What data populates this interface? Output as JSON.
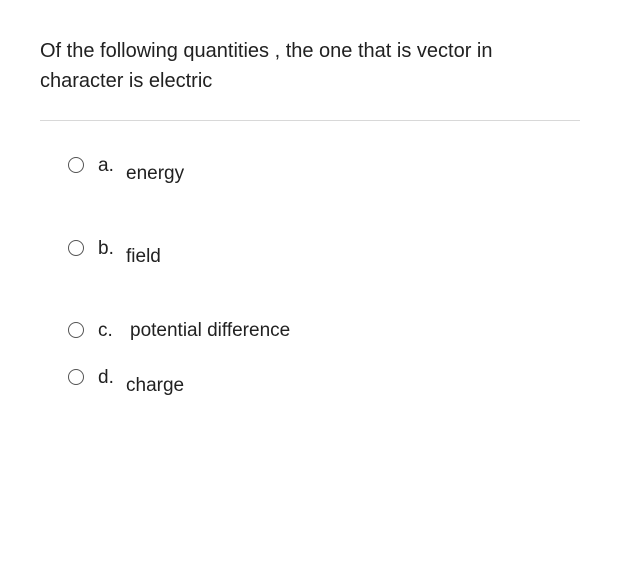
{
  "question": {
    "text": "Of the following quantities , the one that is vector in character is electric",
    "text_color": "#212121",
    "fontsize": 20,
    "background_color": "#ffffff",
    "divider_color": "#d8d8d8"
  },
  "options": {
    "a": {
      "letter": "a.",
      "text": "energy"
    },
    "b": {
      "letter": "b.",
      "text": "field"
    },
    "c": {
      "letter": "c.",
      "text": "potential difference"
    },
    "d": {
      "letter": "d.",
      "text": "charge"
    }
  },
  "radio": {
    "border_color": "#555555",
    "size": 16
  }
}
